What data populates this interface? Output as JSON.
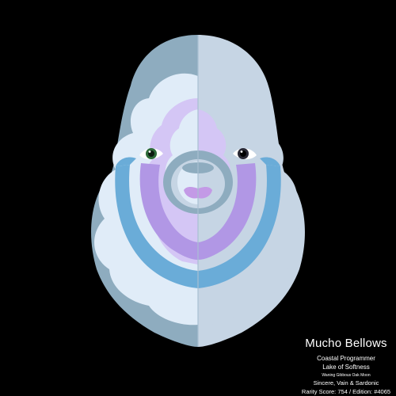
{
  "art": {
    "background": "#000000",
    "palette": {
      "steel": "#8eacbf",
      "light": "#c6d5e4",
      "pale": "#e0ecf8",
      "lavender": "#d4c6f5",
      "purple": "#b197e5",
      "blue": "#6aacd8",
      "pink": "#c39ae6",
      "eye_green": "#2e6b3a",
      "eye_dark": "#1e1e2e"
    },
    "icons": [
      "character-portrait"
    ]
  },
  "card": {
    "name": "Mucho Bellows",
    "role": "Coastal Programmer",
    "place": "Lake of Softness",
    "moon": "Waning Gibbous Oak Moon",
    "traits": "Sincere, Vain & Sardonic",
    "rarity": "Rarity Score: 754 / Edition: #4065"
  }
}
